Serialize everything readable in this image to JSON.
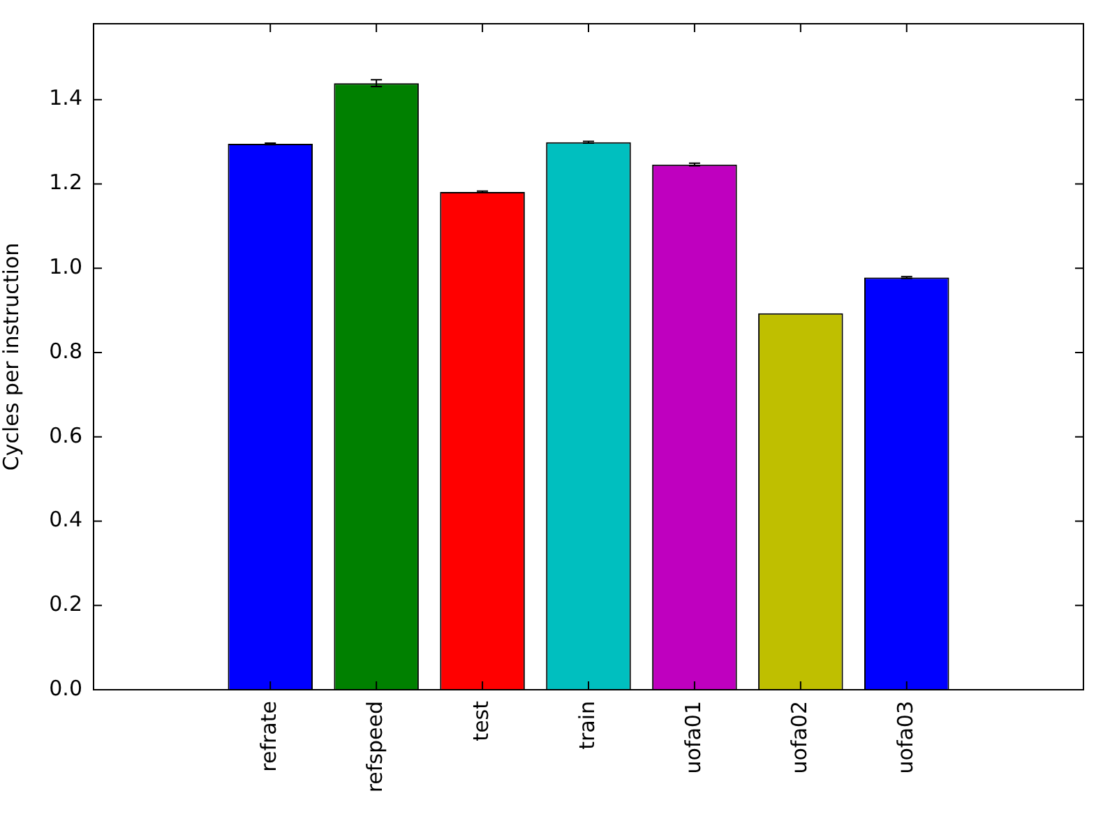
{
  "chart_data": {
    "type": "bar",
    "ylabel": "Cycles per instruction",
    "categories": [
      "refrate",
      "refspeed",
      "test",
      "train",
      "uofa01",
      "uofa02",
      "uofa03"
    ],
    "values": [
      1.295,
      1.439,
      1.181,
      1.299,
      1.246,
      0.893,
      0.978
    ],
    "errors": [
      0.002,
      0.008,
      0.002,
      0.002,
      0.003,
      null,
      0.002
    ],
    "colors": [
      "#0000ff",
      "#008000",
      "#ff0000",
      "#00bfbf",
      "#bf00bf",
      "#bfbf00",
      "#0000ff"
    ],
    "ylim": [
      0,
      1.58
    ],
    "yticks": [
      {
        "value": 0,
        "label": "0.0"
      },
      0.2,
      0.4,
      0.6,
      0.8,
      {
        "value": 1,
        "label": "1.0"
      },
      1.2,
      1.4
    ],
    "grid": false,
    "legend": false
  }
}
